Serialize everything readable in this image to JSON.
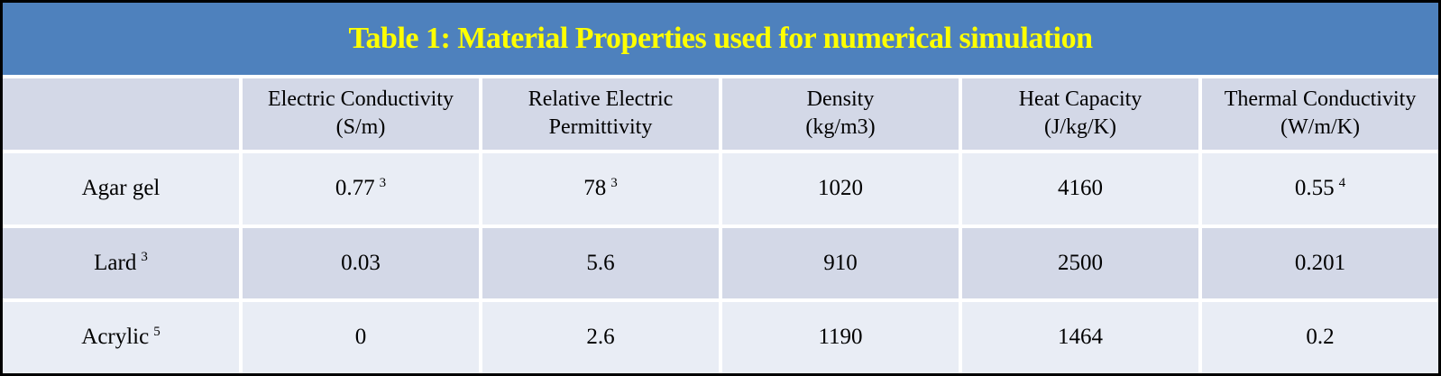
{
  "title": "Table 1: Material Properties used for numerical simulation",
  "colors": {
    "title_bar_bg": "#4E81BD",
    "title_text": "#FFFF00",
    "header_row_bg": "#D3D8E7",
    "row_light_bg": "#E9EDF5",
    "row_alt_bg": "#D3D8E7",
    "outer_border": "#000000",
    "cell_gap": "#FFFFFF",
    "body_text": "#000000"
  },
  "table": {
    "headers": [
      "",
      "Electric Conductivity\n(S/m)",
      "Relative Electric\nPermittivity",
      "Density\n(kg/m3)",
      "Heat Capacity\n(J/kg/K)",
      "Thermal Conductivity\n(W/m/K)"
    ],
    "rows": [
      {
        "cells": [
          {
            "text": "Agar gel",
            "sup": ""
          },
          {
            "text": "0.77",
            "sup": "3"
          },
          {
            "text": "78",
            "sup": "3"
          },
          {
            "text": "1020",
            "sup": ""
          },
          {
            "text": "4160",
            "sup": ""
          },
          {
            "text": "0.55",
            "sup": "4"
          }
        ]
      },
      {
        "cells": [
          {
            "text": "Lard",
            "sup": "3"
          },
          {
            "text": "0.03",
            "sup": ""
          },
          {
            "text": "5.6",
            "sup": ""
          },
          {
            "text": "910",
            "sup": ""
          },
          {
            "text": "2500",
            "sup": ""
          },
          {
            "text": "0.201",
            "sup": ""
          }
        ]
      },
      {
        "cells": [
          {
            "text": "Acrylic",
            "sup": "5"
          },
          {
            "text": "0",
            "sup": ""
          },
          {
            "text": "2.6",
            "sup": ""
          },
          {
            "text": "1190",
            "sup": ""
          },
          {
            "text": "1464",
            "sup": ""
          },
          {
            "text": "0.2",
            "sup": ""
          }
        ]
      }
    ]
  }
}
